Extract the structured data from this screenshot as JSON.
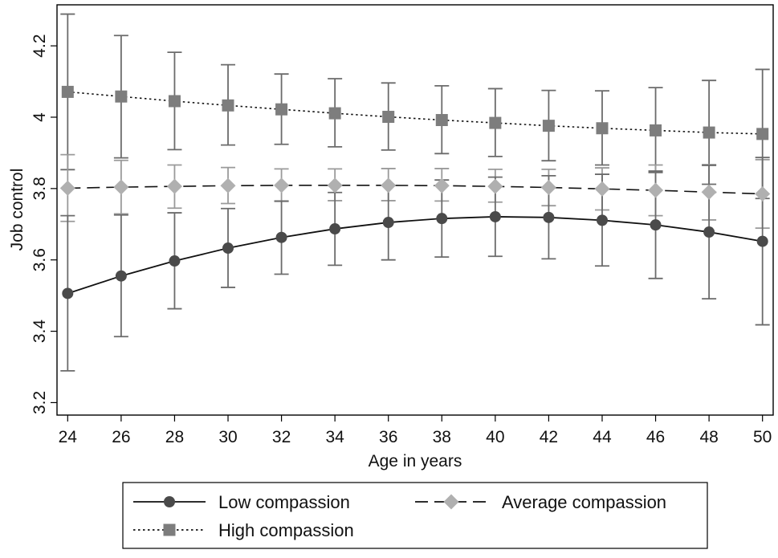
{
  "chart_data": {
    "type": "line",
    "xlabel": "Age in years",
    "ylabel": "Job control",
    "xlim": [
      23.6,
      50.4
    ],
    "ylim": [
      3.165,
      4.315
    ],
    "x_ticks": [
      24,
      26,
      28,
      30,
      32,
      34,
      36,
      38,
      40,
      42,
      44,
      46,
      48,
      50
    ],
    "y_ticks": [
      3.2,
      3.4,
      3.6,
      3.8,
      4,
      4.2
    ],
    "grid": false,
    "legend_position": "bottom",
    "x": [
      24,
      26,
      28,
      30,
      32,
      34,
      36,
      38,
      40,
      42,
      44,
      46,
      48,
      50
    ],
    "series": [
      {
        "name": "Low compassion",
        "line_style": "solid",
        "marker": "circle",
        "color": "#4a4a4a",
        "values": [
          3.506,
          3.555,
          3.597,
          3.633,
          3.663,
          3.687,
          3.705,
          3.716,
          3.721,
          3.719,
          3.711,
          3.698,
          3.678,
          3.652
        ],
        "ci_low": [
          3.289,
          3.385,
          3.463,
          3.523,
          3.56,
          3.585,
          3.6,
          3.608,
          3.61,
          3.603,
          3.583,
          3.548,
          3.491,
          3.418
        ],
        "ci_high": [
          3.724,
          3.726,
          3.732,
          3.744,
          3.765,
          3.789,
          3.809,
          3.824,
          3.832,
          3.836,
          3.84,
          3.849,
          3.865,
          3.887
        ]
      },
      {
        "name": "Average compassion",
        "line_style": "dashed",
        "marker": "diamond",
        "color": "#b0b0b0",
        "values": [
          3.801,
          3.804,
          3.806,
          3.808,
          3.809,
          3.809,
          3.809,
          3.808,
          3.806,
          3.803,
          3.799,
          3.795,
          3.79,
          3.785
        ],
        "ci_low": [
          3.708,
          3.729,
          3.745,
          3.758,
          3.764,
          3.766,
          3.766,
          3.765,
          3.762,
          3.752,
          3.74,
          3.724,
          3.712,
          3.689
        ],
        "ci_high": [
          3.895,
          3.879,
          3.866,
          3.859,
          3.855,
          3.855,
          3.856,
          3.856,
          3.854,
          3.854,
          3.858,
          3.866,
          3.867,
          3.881
        ]
      },
      {
        "name": "High compassion",
        "line_style": "dotted",
        "marker": "square",
        "color": "#7d7d7d",
        "values": [
          4.071,
          4.058,
          4.045,
          4.033,
          4.022,
          4.011,
          4.001,
          3.992,
          3.984,
          3.976,
          3.969,
          3.963,
          3.957,
          3.953
        ],
        "ci_low": [
          3.853,
          3.886,
          3.909,
          3.922,
          3.924,
          3.917,
          3.908,
          3.898,
          3.89,
          3.878,
          3.866,
          3.845,
          3.812,
          3.772
        ],
        "ci_high": [
          4.289,
          4.229,
          4.182,
          4.147,
          4.121,
          4.108,
          4.096,
          4.088,
          4.08,
          4.075,
          4.074,
          4.083,
          4.103,
          4.134
        ]
      }
    ]
  }
}
